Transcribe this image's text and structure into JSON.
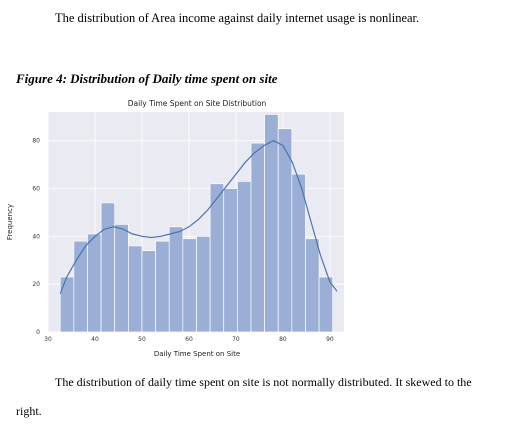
{
  "text": {
    "para_top": "The distribution of Area income against daily internet usage is nonlinear.",
    "figure_caption": "Figure 4: Distribution of Daily time spent on site",
    "para_bottom_line1": "The distribution of daily time spent on site is not normally distributed. It skewed to the",
    "para_bottom_line2": "right."
  },
  "chart_data": {
    "type": "bar",
    "title": "Daily Time Spent on Site Distribution",
    "xlabel": "Daily Time Spent on Site",
    "ylabel": "Frequency",
    "xlim": [
      30,
      93
    ],
    "ylim": [
      0,
      92
    ],
    "xticks": [
      30,
      40,
      50,
      60,
      70,
      80,
      90
    ],
    "yticks": [
      0,
      20,
      40,
      60,
      80
    ],
    "bin_edges": [
      32.6,
      35.5,
      38.4,
      41.3,
      44.2,
      47.1,
      50.0,
      52.9,
      55.8,
      58.7,
      61.6,
      64.5,
      67.4,
      70.3,
      73.2,
      76.1,
      79.0,
      81.9,
      84.8,
      87.7,
      90.6
    ],
    "values": [
      23,
      38,
      41,
      54,
      45,
      36,
      34,
      38,
      44,
      39,
      40,
      62,
      60,
      63,
      79,
      91,
      85,
      66,
      39,
      23
    ],
    "kde_line": {
      "x": [
        32.6,
        34,
        36,
        38,
        40,
        42,
        44,
        46,
        48,
        50,
        52,
        54,
        56,
        58,
        60,
        62,
        64,
        66,
        68,
        70,
        72,
        74,
        76,
        78,
        80,
        82,
        84,
        86,
        88,
        90,
        91.5
      ],
      "y": [
        16,
        23,
        30,
        36,
        40,
        43,
        44,
        43,
        41,
        40,
        39.5,
        40,
        41,
        42,
        44,
        47,
        51,
        56,
        61,
        66,
        71,
        75,
        78,
        80,
        78,
        71,
        60,
        46,
        32,
        21,
        17
      ]
    },
    "bar_color": "#9aaed6",
    "line_color": "#4c72b0",
    "background": "#eaeaf2",
    "grid": true
  }
}
